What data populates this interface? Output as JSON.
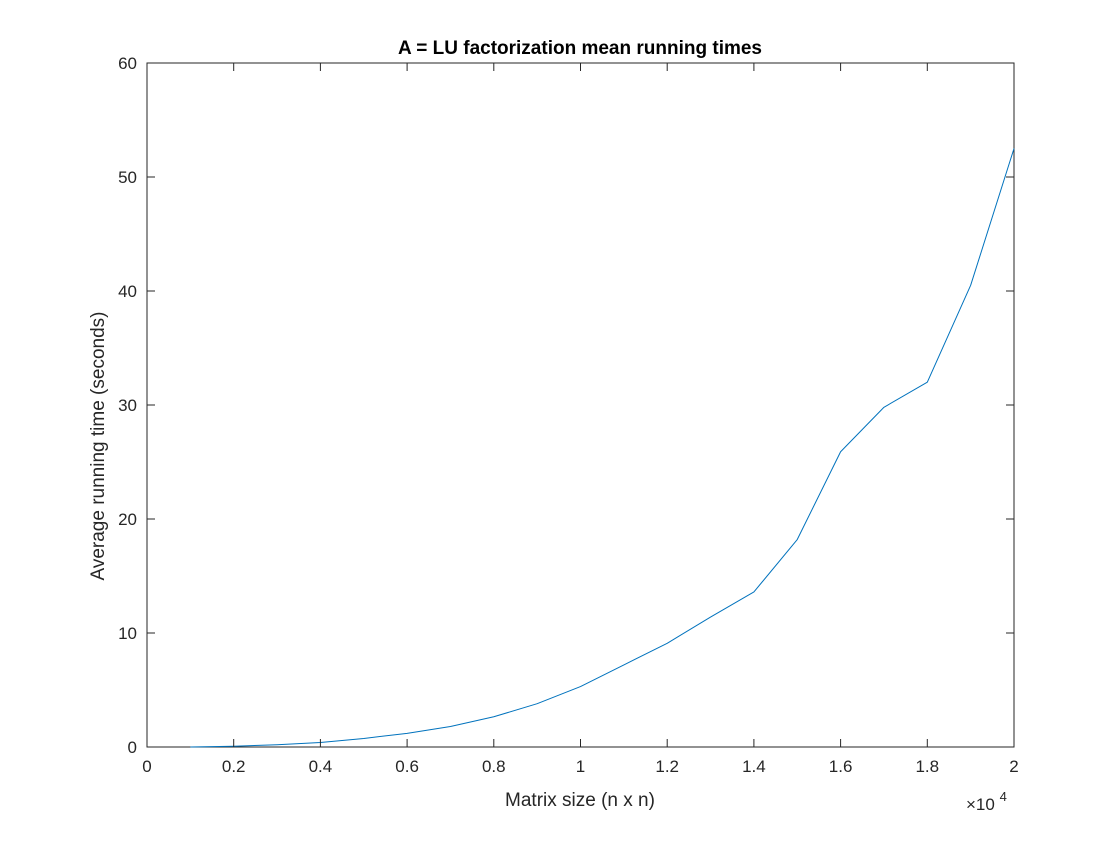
{
  "chart_data": {
    "type": "line",
    "title": "A = LU factorization mean running times",
    "xlabel": "Matrix size (n x n)",
    "ylabel": "Average running time (seconds)",
    "x_exponent_base": "×10",
    "x_exponent_power": "4",
    "xlim": [
      0,
      2
    ],
    "ylim": [
      0,
      60
    ],
    "x_scale_multiplier": 10000,
    "grid": false,
    "legend": "none",
    "x_ticks": [
      0,
      0.2,
      0.4,
      0.6,
      0.8,
      1,
      1.2,
      1.4,
      1.6,
      1.8,
      2
    ],
    "x_tick_labels": [
      "0",
      "0.2",
      "0.4",
      "0.6",
      "0.8",
      "1",
      "1.2",
      "1.4",
      "1.6",
      "1.8",
      "2"
    ],
    "y_ticks": [
      0,
      10,
      20,
      30,
      40,
      50,
      60
    ],
    "y_tick_labels": [
      "0",
      "10",
      "20",
      "30",
      "40",
      "50",
      "60"
    ],
    "series": [
      {
        "color": "#0072BD",
        "x": [
          0.1,
          0.2,
          0.3,
          0.4,
          0.5,
          0.6,
          0.7,
          0.8,
          0.9,
          1.0,
          1.1,
          1.2,
          1.3,
          1.4,
          1.5,
          1.6,
          1.7,
          1.8,
          1.9,
          2.0
        ],
        "y": [
          0.0,
          0.07,
          0.2,
          0.4,
          0.75,
          1.2,
          1.8,
          2.65,
          3.8,
          5.3,
          7.2,
          9.1,
          11.4,
          13.6,
          18.2,
          25.9,
          29.8,
          32.0,
          40.5,
          52.5
        ]
      }
    ]
  }
}
